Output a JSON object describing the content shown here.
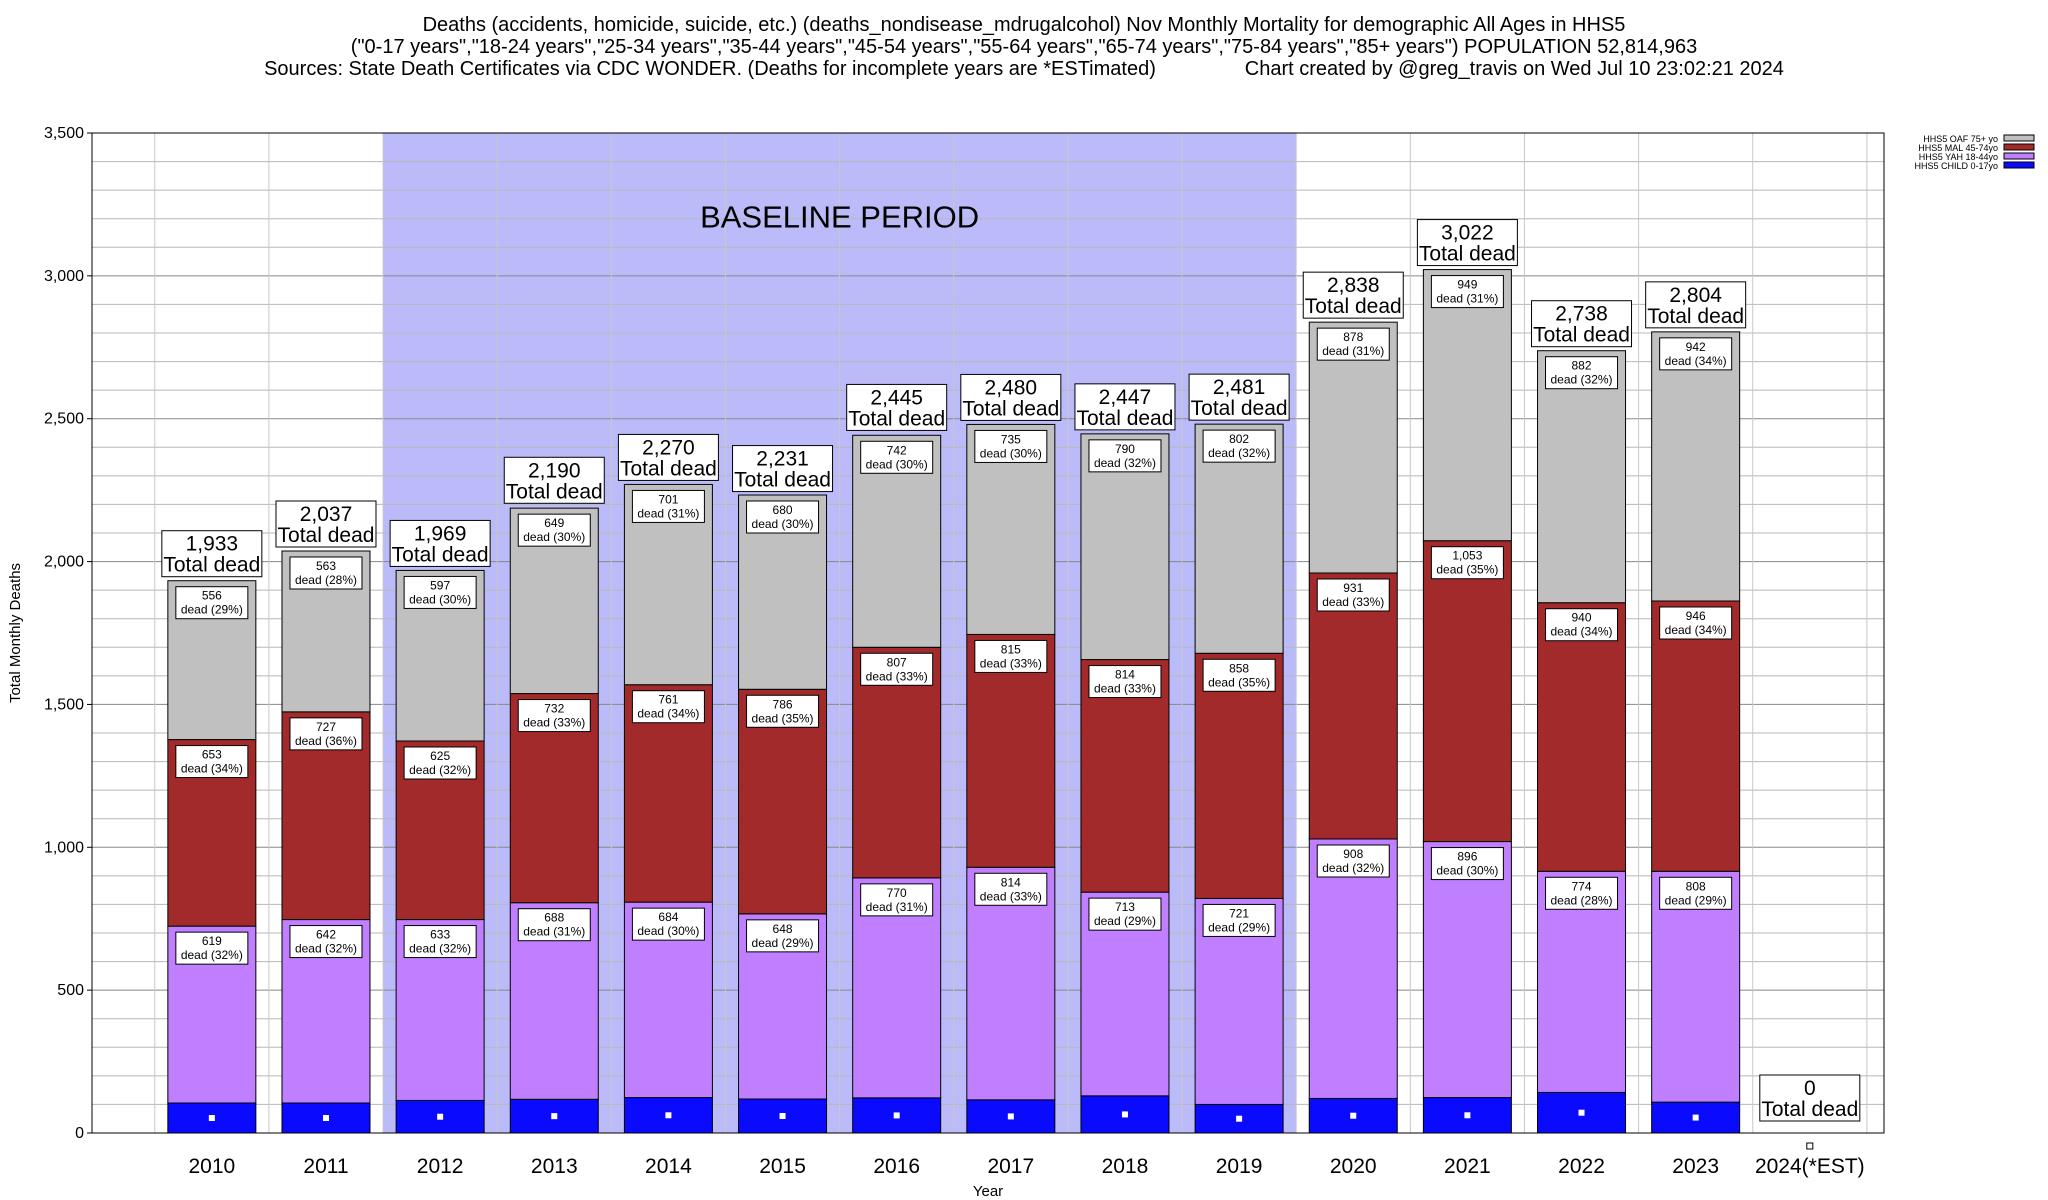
{
  "title_lines": [
    "Deaths (accidents, homicide, suicide, etc.) (deaths_nondisease_mdrugalcohol) Nov Monthly Mortality for demographic All Ages in HHS5",
    "(\"0-17 years\",\"18-24 years\",\"25-34 years\",\"35-44 years\",\"45-54 years\",\"55-64 years\",\"65-74 years\",\"75-84 years\",\"85+ years\") POPULATION 52,814,963",
    "Sources: State Death Certificates via CDC WONDER. (Deaths for incomplete years are *ESTimated)                Chart created by @greg_travis on Wed Jul 10 23:02:21 2024"
  ],
  "colors": {
    "child": "#0a0aff",
    "yah": "#c07fff",
    "mal": "#a32a2a",
    "oaf": "#c0c0c0",
    "baseline": "#bbbbfa"
  },
  "chart_data": {
    "type": "bar",
    "stacked": true,
    "xlabel": "Year",
    "ylabel": "Total Monthly Deaths",
    "ylim": [
      0,
      3500
    ],
    "yticks": [
      "0",
      "500",
      "1,000",
      "1,500",
      "2,000",
      "2,500",
      "3,000",
      "3,500"
    ],
    "grid": true,
    "legend_position": "top-right",
    "annotation": "BASELINE PERIOD",
    "total_suffix": "Total dead",
    "categories": [
      "2010",
      "2011",
      "2012",
      "2013",
      "2014",
      "2015",
      "2016",
      "2017",
      "2018",
      "2019",
      "2020",
      "2021",
      "2022",
      "2023",
      "2024(*EST)"
    ],
    "totals": [
      1933,
      2037,
      1969,
      2190,
      2270,
      2231,
      2445,
      2480,
      2447,
      2481,
      2838,
      3022,
      2738,
      2804,
      0
    ],
    "total_labels": [
      "1,933",
      "2,037",
      "1,969",
      "2,190",
      "2,270",
      "2,231",
      "2,445",
      "2,480",
      "2,447",
      "2,481",
      "2,838",
      "3,022",
      "2,738",
      "2,804",
      "0"
    ],
    "series": [
      {
        "name": "HHS5 CHILD 0-17yo",
        "key": "child",
        "values": [
          105,
          105,
          114,
          118,
          124,
          119,
          123,
          116,
          130,
          100,
          121,
          124,
          142,
          108,
          0
        ]
      },
      {
        "name": "HHS5 YAH 18-44yo",
        "key": "yah",
        "values": [
          619,
          642,
          633,
          688,
          684,
          648,
          770,
          814,
          713,
          721,
          908,
          896,
          774,
          808,
          0
        ],
        "labels": [
          "619",
          "642",
          "633",
          "688",
          "684",
          "648",
          "770",
          "814",
          "713",
          "721",
          "908",
          "896",
          "774",
          "808",
          ""
        ],
        "pct_labels": [
          "dead (32%)",
          "dead (32%)",
          "dead (32%)",
          "dead (31%)",
          "dead (30%)",
          "dead (29%)",
          "dead (31%)",
          "dead (33%)",
          "dead (29%)",
          "dead (29%)",
          "dead (32%)",
          "dead (30%)",
          "dead (28%)",
          "dead (29%)",
          ""
        ]
      },
      {
        "name": "HHS5 MAL 45-74yo",
        "key": "mal",
        "values": [
          653,
          727,
          625,
          732,
          761,
          786,
          807,
          815,
          814,
          858,
          931,
          1053,
          940,
          946,
          0
        ],
        "labels": [
          "653",
          "727",
          "625",
          "732",
          "761",
          "786",
          "807",
          "815",
          "814",
          "858",
          "931",
          "1,053",
          "940",
          "946",
          ""
        ],
        "pct_labels": [
          "dead (34%)",
          "dead (36%)",
          "dead (32%)",
          "dead (33%)",
          "dead (34%)",
          "dead (35%)",
          "dead (33%)",
          "dead (33%)",
          "dead (33%)",
          "dead (35%)",
          "dead (33%)",
          "dead (35%)",
          "dead (34%)",
          "dead (34%)",
          ""
        ]
      },
      {
        "name": "HHS5 OAF 75+ yo",
        "key": "oaf",
        "values": [
          556,
          563,
          597,
          649,
          701,
          680,
          742,
          735,
          790,
          802,
          878,
          949,
          882,
          942,
          0
        ],
        "labels": [
          "556",
          "563",
          "597",
          "649",
          "701",
          "680",
          "742",
          "735",
          "790",
          "802",
          "878",
          "949",
          "882",
          "942",
          ""
        ],
        "pct_labels": [
          "dead (29%)",
          "dead (28%)",
          "dead (30%)",
          "dead (30%)",
          "dead (31%)",
          "dead (30%)",
          "dead (30%)",
          "dead (30%)",
          "dead (32%)",
          "dead (32%)",
          "dead (31%)",
          "dead (31%)",
          "dead (32%)",
          "dead (34%)",
          ""
        ]
      }
    ],
    "legend_order": [
      "HHS5 OAF 75+ yo",
      "HHS5 MAL 45-74yo",
      "HHS5 YAH 18-44yo",
      "HHS5 CHILD 0-17yo"
    ]
  }
}
